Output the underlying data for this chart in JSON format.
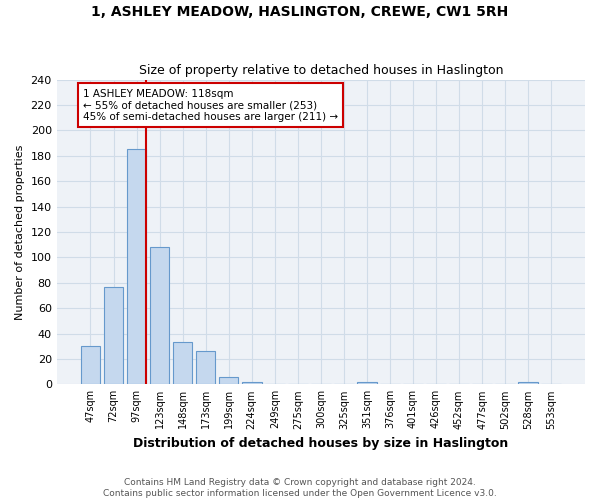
{
  "title": "1, ASHLEY MEADOW, HASLINGTON, CREWE, CW1 5RH",
  "subtitle": "Size of property relative to detached houses in Haslington",
  "xlabel": "Distribution of detached houses by size in Haslington",
  "ylabel": "Number of detached properties",
  "bar_color": "#c5d8ee",
  "bar_edge_color": "#6699cc",
  "grid_color": "#d0dce8",
  "background_color": "#eef2f7",
  "categories": [
    "47sqm",
    "72sqm",
    "97sqm",
    "123sqm",
    "148sqm",
    "173sqm",
    "199sqm",
    "224sqm",
    "249sqm",
    "275sqm",
    "300sqm",
    "325sqm",
    "351sqm",
    "376sqm",
    "401sqm",
    "426sqm",
    "452sqm",
    "477sqm",
    "502sqm",
    "528sqm",
    "553sqm"
  ],
  "values": [
    30,
    77,
    185,
    108,
    33,
    26,
    6,
    2,
    0,
    0,
    0,
    0,
    2,
    0,
    0,
    0,
    0,
    0,
    0,
    2,
    0
  ],
  "vline_bar_index": 2,
  "annotation_text": "1 ASHLEY MEADOW: 118sqm\n← 55% of detached houses are smaller (253)\n45% of semi-detached houses are larger (211) →",
  "annotation_box_facecolor": "#ffffff",
  "annotation_box_edgecolor": "#cc0000",
  "vline_color": "#cc0000",
  "ylim": [
    0,
    240
  ],
  "yticks": [
    0,
    20,
    40,
    60,
    80,
    100,
    120,
    140,
    160,
    180,
    200,
    220,
    240
  ],
  "footer_line1": "Contains HM Land Registry data © Crown copyright and database right 2024.",
  "footer_line2": "Contains public sector information licensed under the Open Government Licence v3.0."
}
